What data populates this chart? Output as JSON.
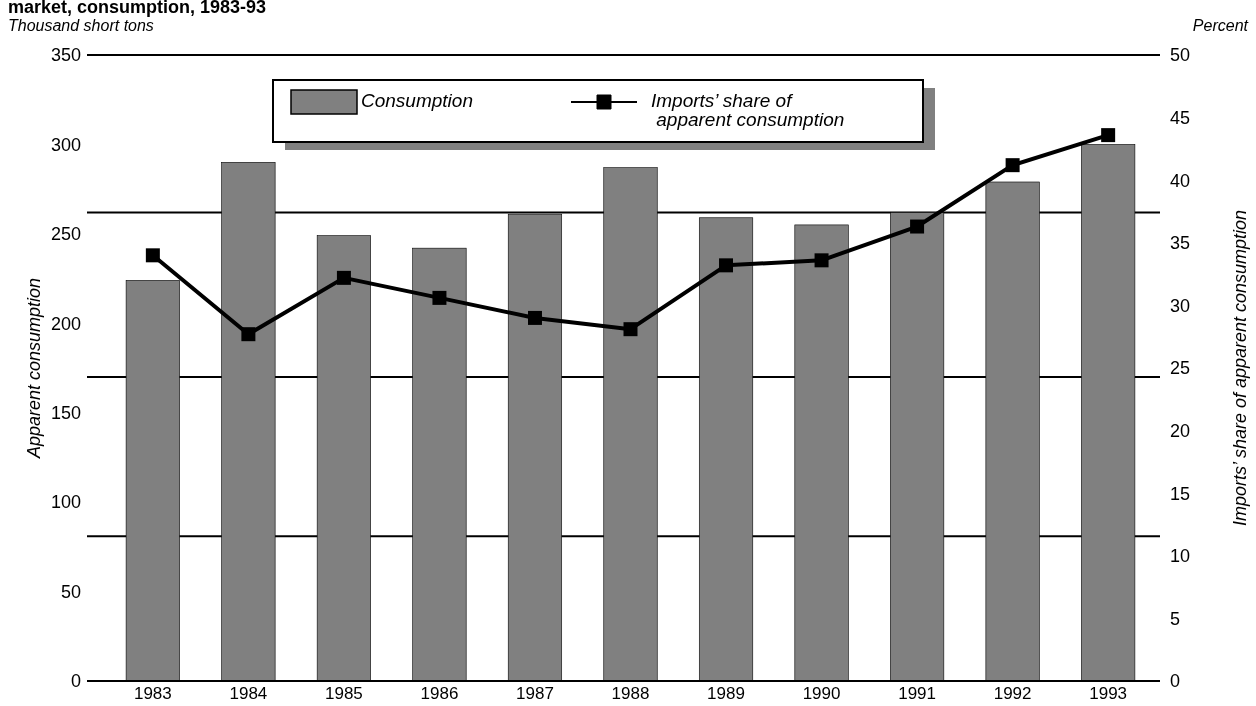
{
  "chart_data": {
    "type": "bar",
    "title": "market, consumption, 1983-93",
    "ylabel": "Apparent consumption",
    "y2label": "Imports’ share of apparent consumption",
    "annotations": [
      "Thousand short tons",
      "Percent"
    ],
    "categories": [
      "1983",
      "1984",
      "1985",
      "1986",
      "1987",
      "1988",
      "1989",
      "1990",
      "1991",
      "1992",
      "1993"
    ],
    "series": [
      {
        "name": "Consumption",
        "color": "#808080",
        "values": [
          224,
          290,
          249,
          242,
          261,
          287,
          259,
          255,
          262,
          279,
          300
        ]
      },
      {
        "name": "Imports’ share of apparent consumption",
        "type": "line",
        "axis": "y2",
        "color": "#000000",
        "marker": "square",
        "values": [
          34.0,
          27.7,
          32.2,
          30.6,
          29.0,
          28.1,
          33.2,
          33.6,
          36.3,
          41.2,
          43.6
        ]
      }
    ],
    "ylim": [
      0,
      350
    ],
    "yticks": [
      0,
      50,
      100,
      150,
      200,
      250,
      300,
      350
    ],
    "y2lim": [
      0,
      50
    ],
    "y2ticks": [
      0,
      5,
      10,
      15,
      20,
      25,
      30,
      35,
      40,
      45,
      50
    ],
    "ref_lines": [
      {
        "axis": "y",
        "value": 81
      },
      {
        "axis": "y",
        "value": 170
      },
      {
        "axis": "y",
        "value": 262
      }
    ],
    "legend": "top"
  }
}
